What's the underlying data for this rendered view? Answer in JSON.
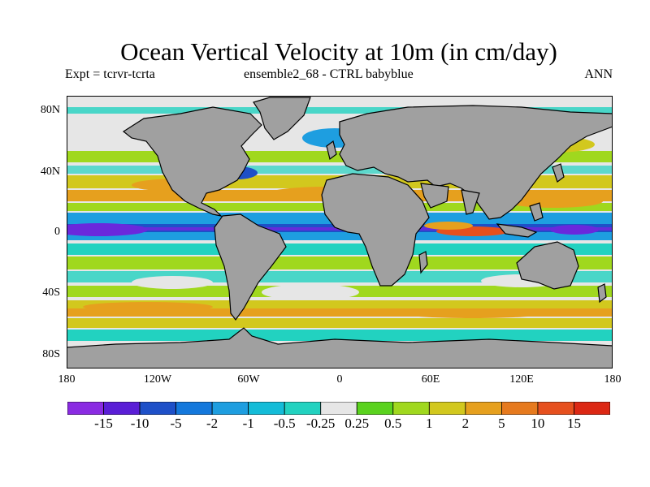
{
  "title": "Ocean Vertical Velocity at 10m (in cm/day)",
  "subtitle_left": "Expt = tcrvr-tcrta",
  "subtitle_center": "ensemble2_68 - CTRL babyblue",
  "subtitle_right": "ANN",
  "lat_ticks": [
    "80N",
    "40N",
    "0",
    "40S",
    "80S"
  ],
  "lon_ticks": [
    "180",
    "120W",
    "60W",
    "0",
    "60E",
    "120E",
    "180"
  ],
  "colorbar": {
    "labels": [
      "-15",
      "-10",
      "-5",
      "-2",
      "-1",
      "-0.5",
      "-0.25",
      "0.25",
      "0.5",
      "1",
      "2",
      "5",
      "10",
      "15"
    ],
    "colors": [
      "#8a2be2",
      "#5a1ed6",
      "#1e50c8",
      "#1478dc",
      "#1e9ee0",
      "#14bcd8",
      "#22d2c0",
      "#e6e6e6",
      "#5ad21e",
      "#a0d81e",
      "#d2c81e",
      "#e6a01e",
      "#e67a1e",
      "#e6501e",
      "#dc2814"
    ]
  },
  "map_colors": {
    "land": "#a0a0a0",
    "ice": "#e6e6e6"
  }
}
